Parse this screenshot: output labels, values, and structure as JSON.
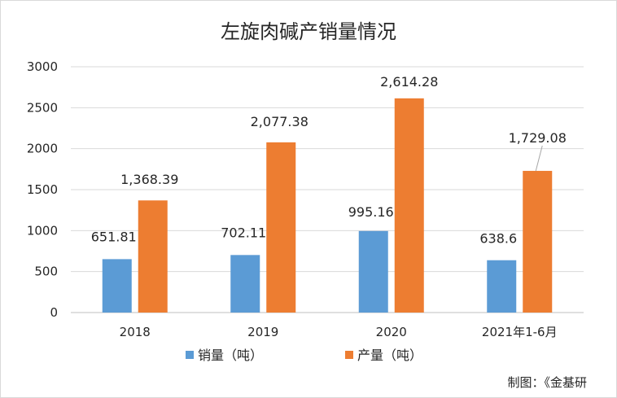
{
  "chart_data": {
    "type": "bar",
    "title": "左旋肉碱产销量情况",
    "categories": [
      "2018",
      "2019",
      "2020",
      "2021年1-6月"
    ],
    "series": [
      {
        "name": "销量（吨）",
        "color": "#5b9bd5",
        "values": [
          651.81,
          702.11,
          995.16,
          638.6
        ],
        "labels": [
          "651.81",
          "702.11",
          "995.16",
          "638.6"
        ]
      },
      {
        "name": "产量（吨）",
        "color": "#ed7d31",
        "values": [
          1368.39,
          2077.38,
          2614.28,
          1729.08
        ],
        "labels": [
          "1,368.39",
          "2,077.38",
          "2,614.28",
          "1,729.08"
        ]
      }
    ],
    "ylim": [
      0,
      3000
    ],
    "yticks": [
      0,
      500,
      1000,
      1500,
      2000,
      2500,
      3000
    ],
    "grid": true,
    "legend_position": "bottom"
  },
  "source": "制图：《金基研"
}
